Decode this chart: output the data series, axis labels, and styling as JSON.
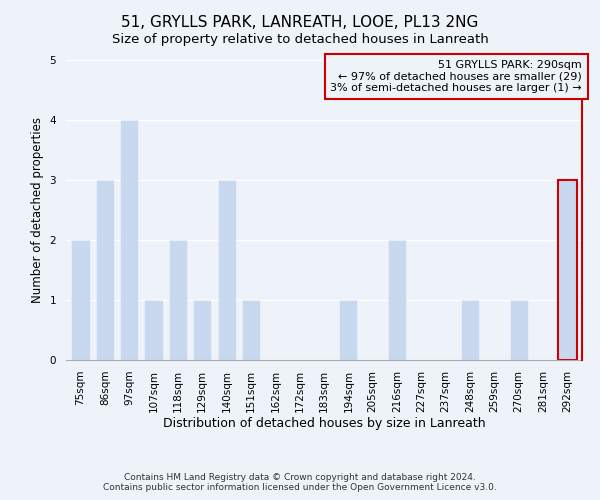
{
  "title": "51, GRYLLS PARK, LANREATH, LOOE, PL13 2NG",
  "subtitle": "Size of property relative to detached houses in Lanreath",
  "xlabel": "Distribution of detached houses by size in Lanreath",
  "ylabel": "Number of detached properties",
  "bar_labels": [
    "75sqm",
    "86sqm",
    "97sqm",
    "107sqm",
    "118sqm",
    "129sqm",
    "140sqm",
    "151sqm",
    "162sqm",
    "172sqm",
    "183sqm",
    "194sqm",
    "205sqm",
    "216sqm",
    "227sqm",
    "237sqm",
    "248sqm",
    "259sqm",
    "270sqm",
    "281sqm",
    "292sqm"
  ],
  "bar_values": [
    2,
    3,
    4,
    1,
    2,
    1,
    3,
    1,
    0,
    0,
    0,
    1,
    0,
    2,
    0,
    0,
    1,
    0,
    1,
    0,
    3
  ],
  "bar_color": "#c8d8ee",
  "highlight_bar_index": 20,
  "highlight_bar_edge_color": "#cc0000",
  "ylim": [
    0,
    5
  ],
  "yticks": [
    0,
    1,
    2,
    3,
    4,
    5
  ],
  "annotation_title": "51 GRYLLS PARK: 290sqm",
  "annotation_line1": "← 97% of detached houses are smaller (29)",
  "annotation_line2": "3% of semi-detached houses are larger (1) →",
  "annotation_box_edge_color": "#cc0000",
  "footnote1": "Contains HM Land Registry data © Crown copyright and database right 2024.",
  "footnote2": "Contains public sector information licensed under the Open Government Licence v3.0.",
  "background_color": "#eef2f9",
  "title_fontsize": 11,
  "subtitle_fontsize": 9.5,
  "annotation_fontsize": 8,
  "ylabel_fontsize": 8.5,
  "xlabel_fontsize": 9,
  "tick_fontsize": 7.5,
  "footnote_fontsize": 6.5
}
